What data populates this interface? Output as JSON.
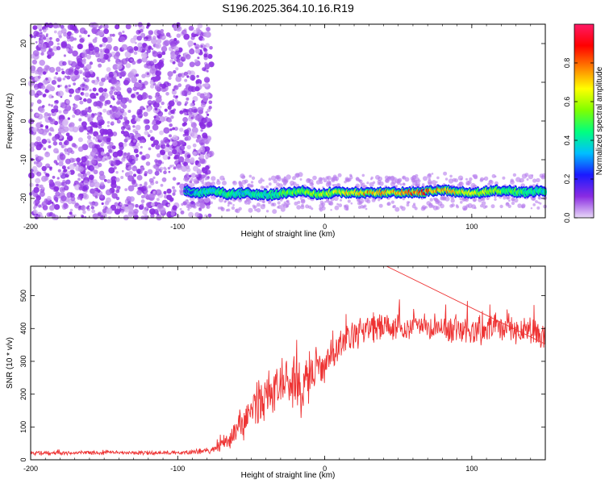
{
  "title": "S196.2025.364.10.16.R19",
  "chart_data": [
    {
      "type": "heatmap",
      "xlabel": "Height of straight line (km)",
      "ylabel": "Frequency (Hz)",
      "xlim": [
        -200,
        150
      ],
      "ylim": [
        -25,
        25
      ],
      "x_ticks": [
        -200,
        -100,
        0,
        100
      ],
      "y_ticks": [
        -20,
        -10,
        0,
        10,
        20
      ],
      "colorbar": {
        "label": "Normalized spectral amplitude",
        "range": [
          0,
          1
        ],
        "ticks": [
          "0.0",
          "0.2",
          "0.4",
          "0.6",
          "0.8"
        ],
        "tick_values": [
          0.0,
          0.2,
          0.4,
          0.6,
          0.8
        ],
        "colors": [
          "#e8d9f7",
          "#8a2be2",
          "#1a1aff",
          "#00bfff",
          "#00ff7f",
          "#7fff00",
          "#ffff00",
          "#ff7f00",
          "#ff0000",
          "#ff1a66"
        ]
      },
      "noise_region": {
        "x_range": [
          -200,
          -85
        ],
        "freq_range": [
          -25,
          25
        ],
        "amplitude_range": [
          0.02,
          0.12
        ]
      },
      "trace": {
        "x": [
          -95,
          -85,
          -75,
          -65,
          -55,
          -45,
          -35,
          -25,
          -15,
          -5,
          5,
          15,
          25,
          35,
          45,
          55,
          65,
          75,
          85,
          95,
          105,
          115,
          125,
          135,
          145,
          150
        ],
        "freq": [
          -18,
          -18.5,
          -18,
          -19,
          -18.5,
          -19,
          -19,
          -18.5,
          -18,
          -19,
          -18.5,
          -18.5,
          -18.5,
          -18.5,
          -18.5,
          -18.5,
          -18.5,
          -18,
          -18,
          -18.5,
          -18.5,
          -18,
          -18,
          -18.5,
          -18,
          -18
        ],
        "amplitude": [
          0.2,
          0.35,
          0.4,
          0.45,
          0.35,
          0.4,
          0.45,
          0.5,
          0.55,
          0.55,
          0.6,
          0.65,
          0.7,
          0.75,
          0.7,
          0.75,
          0.8,
          0.75,
          0.7,
          0.65,
          0.6,
          0.55,
          0.5,
          0.45,
          0.4,
          0.35
        ]
      }
    },
    {
      "type": "line",
      "xlabel": "Height of straight line (km)",
      "ylabel": "SNR (10 * v/v)",
      "xlim": [
        -200,
        150
      ],
      "ylim": [
        0,
        590
      ],
      "x_ticks": [
        -200,
        -100,
        0,
        100
      ],
      "y_ticks": [
        0,
        100,
        200,
        300,
        400,
        500
      ],
      "series": [
        {
          "name": "SNR",
          "color": "#ee3333",
          "x": [
            -200,
            -180,
            -160,
            -140,
            -120,
            -100,
            -90,
            -80,
            -75,
            -70,
            -65,
            -60,
            -55,
            -50,
            -45,
            -40,
            -35,
            -30,
            -25,
            -20,
            -15,
            -10,
            -5,
            0,
            5,
            10,
            15,
            20,
            25,
            30,
            40,
            50,
            60,
            80,
            100,
            120,
            140,
            150
          ],
          "values": [
            20,
            20,
            21,
            22,
            21,
            22,
            24,
            26,
            30,
            45,
            60,
            90,
            120,
            150,
            170,
            195,
            210,
            230,
            250,
            240,
            210,
            260,
            290,
            300,
            320,
            345,
            360,
            370,
            385,
            395,
            410,
            400,
            405,
            400,
            395,
            400,
            390,
            380
          ],
          "noise": [
            6,
            6,
            6,
            6,
            6,
            6,
            8,
            10,
            12,
            20,
            28,
            40,
            55,
            65,
            70,
            70,
            70,
            75,
            75,
            80,
            75,
            70,
            65,
            60,
            55,
            50,
            50,
            50,
            45,
            45,
            45,
            40,
            40,
            40,
            40,
            45,
            50,
            50
          ]
        }
      ],
      "peak_annotations": [
        {
          "x": 42,
          "value": 590
        }
      ]
    }
  ]
}
